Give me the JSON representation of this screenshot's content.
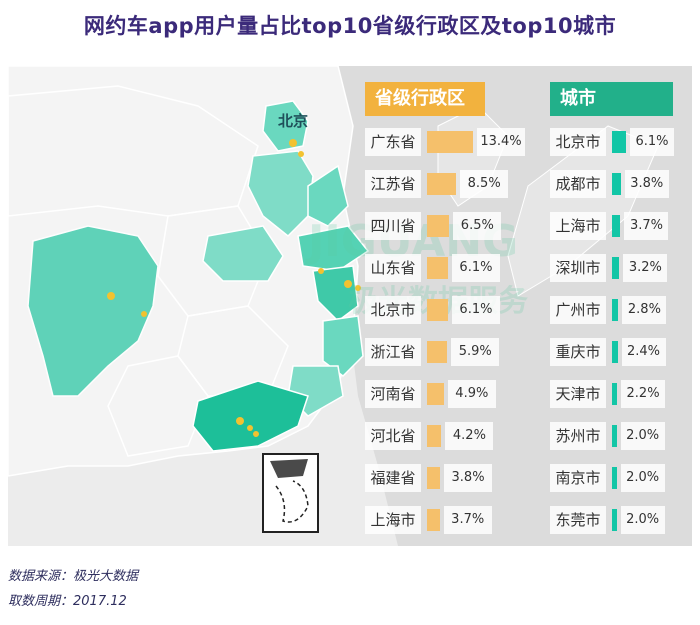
{
  "title": "网约车app用户量占比top10省级行政区及top10城市",
  "map": {
    "label_beijing": "北京",
    "watermark_brand": "JIGUANG",
    "watermark_cn": "极光数据服务"
  },
  "colors": {
    "province_bar": "#f5c06b",
    "province_header": "#f2b23e",
    "city_bar": "#12c6a6",
    "city_header": "#22b08a",
    "title": "#3b2a7a",
    "highlight_region": "#4fcfb2"
  },
  "chart_data": [
    {
      "type": "bar",
      "title": "省级行政区",
      "categories": [
        "广东省",
        "江苏省",
        "四川省",
        "山东省",
        "北京市",
        "浙江省",
        "河南省",
        "河北省",
        "福建省",
        "上海市"
      ],
      "values": [
        13.4,
        8.5,
        6.5,
        6.1,
        6.1,
        5.9,
        4.9,
        4.2,
        3.8,
        3.7
      ],
      "value_labels": [
        "13.4%",
        "8.5%",
        "6.5%",
        "6.1%",
        "6.1%",
        "5.9%",
        "4.9%",
        "4.2%",
        "3.8%",
        "3.7%"
      ],
      "unit": "%"
    },
    {
      "type": "bar",
      "title": "城市",
      "categories": [
        "北京市",
        "成都市",
        "上海市",
        "深圳市",
        "广州市",
        "重庆市",
        "天津市",
        "苏州市",
        "南京市",
        "东莞市"
      ],
      "values": [
        6.1,
        3.8,
        3.7,
        3.2,
        2.8,
        2.4,
        2.2,
        2.0,
        2.0,
        2.0
      ],
      "value_labels": [
        "6.1%",
        "3.8%",
        "3.7%",
        "3.2%",
        "2.8%",
        "2.4%",
        "2.2%",
        "2.0%",
        "2.0%",
        "2.0%"
      ],
      "unit": "%"
    }
  ],
  "footer": {
    "source": "数据来源：极光大数据",
    "period": "取数周期：2017.12"
  }
}
